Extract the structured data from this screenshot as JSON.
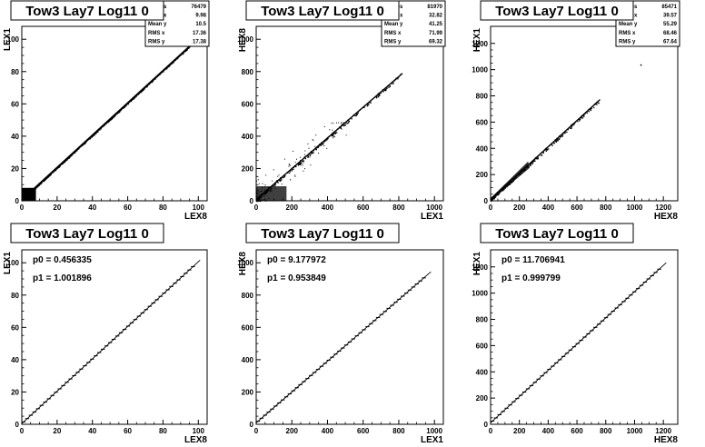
{
  "chart_data": [
    {
      "type": "scatter",
      "title": "Tow3 Lay7 Log11 0",
      "xlabel": "LEX8",
      "ylabel": "LEX1",
      "xlim": [
        0,
        105
      ],
      "ylim": [
        0,
        108
      ],
      "xticks": [
        0,
        20,
        40,
        60,
        80,
        100
      ],
      "yticks": [
        0,
        20,
        40,
        60,
        80,
        100
      ],
      "stats": [
        {
          "label": "Entries",
          "value": "76479"
        },
        {
          "label": "Mean x",
          "value": "9.98"
        },
        {
          "label": "Mean y",
          "value": "10.5"
        },
        {
          "label": "RMS x",
          "value": "17.36"
        },
        {
          "label": "RMS y",
          "value": "17.38"
        }
      ],
      "trend": {
        "slope": 1.0,
        "intercept": 0.45,
        "x_start": 0,
        "x_end": 97
      }
    },
    {
      "type": "scatter",
      "title": "Tow3 Lay7 Log11 0",
      "xlabel": "LEX1",
      "ylabel": "HEX8",
      "xlim": [
        0,
        1050
      ],
      "ylim": [
        0,
        1080
      ],
      "xticks": [
        0,
        200,
        400,
        600,
        800,
        1000
      ],
      "yticks": [
        0,
        200,
        400,
        600,
        800,
        1000
      ],
      "stats": [
        {
          "label": "Entries",
          "value": "81970"
        },
        {
          "label": "Mean x",
          "value": "32.82"
        },
        {
          "label": "Mean y",
          "value": "41.25"
        },
        {
          "label": "RMS x",
          "value": "71.99"
        },
        {
          "label": "RMS y",
          "value": "69.32"
        }
      ],
      "trend": {
        "slope": 0.95,
        "intercept": 9.2,
        "x_start": 0,
        "x_end": 820
      }
    },
    {
      "type": "scatter",
      "title": "Tow3 Lay7 Log11 0",
      "xlabel": "HEX8",
      "ylabel": "HEX1",
      "xlim": [
        0,
        1300
      ],
      "ylim": [
        0,
        1330
      ],
      "xticks": [
        0,
        200,
        400,
        600,
        800,
        1000,
        1200
      ],
      "yticks": [
        0,
        200,
        400,
        600,
        800,
        1000,
        1200
      ],
      "stats": [
        {
          "label": "Entries",
          "value": "85471"
        },
        {
          "label": "Mean x",
          "value": "39.57"
        },
        {
          "label": "Mean y",
          "value": "55.29"
        },
        {
          "label": "RMS x",
          "value": "68.46"
        },
        {
          "label": "RMS y",
          "value": "67.64"
        }
      ],
      "trend": {
        "slope": 1.0,
        "intercept": 11.7,
        "x_start": 0,
        "x_end": 760
      }
    },
    {
      "type": "line",
      "title": "Tow3 Lay7 Log11 0",
      "xlabel": "LEX8",
      "ylabel": "LEX1",
      "xlim": [
        0,
        105
      ],
      "ylim": [
        0,
        108
      ],
      "xticks": [
        0,
        20,
        40,
        60,
        80,
        100
      ],
      "yticks": [
        0,
        20,
        40,
        60,
        80,
        100
      ],
      "fit": {
        "p0": "0.456335",
        "p1": "1.001896"
      },
      "line": {
        "slope": 1.001896,
        "intercept": 0.456335,
        "x_start": 0,
        "x_end": 101
      }
    },
    {
      "type": "line",
      "title": "Tow3 Lay7 Log11 0",
      "xlabel": "LEX1",
      "ylabel": "HEX8",
      "xlim": [
        0,
        1050
      ],
      "ylim": [
        0,
        1080
      ],
      "xticks": [
        0,
        200,
        400,
        600,
        800,
        1000
      ],
      "yticks": [
        0,
        200,
        400,
        600,
        800,
        1000
      ],
      "fit": {
        "p0": "9.177972",
        "p1": "0.953849"
      },
      "line": {
        "slope": 0.953849,
        "intercept": 9.177972,
        "x_start": 0,
        "x_end": 980
      }
    },
    {
      "type": "line",
      "title": "Tow3 Lay7 Log11 0",
      "xlabel": "HEX8",
      "ylabel": "HEX1",
      "xlim": [
        0,
        1300
      ],
      "ylim": [
        0,
        1330
      ],
      "xticks": [
        0,
        200,
        400,
        600,
        800,
        1000,
        1200
      ],
      "yticks": [
        0,
        200,
        400,
        600,
        800,
        1000,
        1200
      ],
      "fit": {
        "p0": "11.706941",
        "p1": "0.999799"
      },
      "line": {
        "slope": 0.999799,
        "intercept": 11.706941,
        "x_start": 0,
        "x_end": 1220
      }
    }
  ]
}
